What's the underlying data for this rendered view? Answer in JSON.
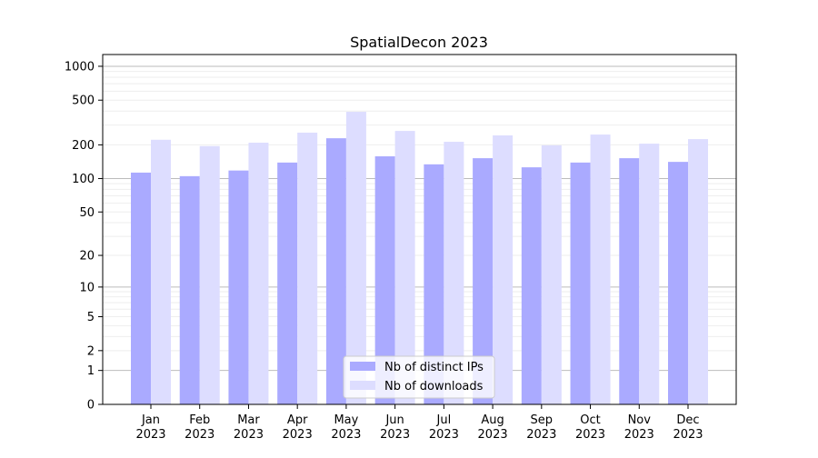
{
  "chart_data": {
    "type": "bar",
    "title": "SpatialDecon 2023",
    "xlabel": "",
    "ylabel": "",
    "yscale": "symlog (log10(1+y))",
    "ylim": [
      0,
      1300
    ],
    "yticks": [
      0,
      1,
      2,
      5,
      10,
      20,
      50,
      100,
      200,
      500,
      1000
    ],
    "grid": true,
    "legend_position": "bottom-center",
    "categories": [
      "Jan\n2023",
      "Feb\n2023",
      "Mar\n2023",
      "Apr\n2023",
      "May\n2023",
      "Jun\n2023",
      "Jul\n2023",
      "Aug\n2023",
      "Sep\n2023",
      "Oct\n2023",
      "Nov\n2023",
      "Dec\n2023"
    ],
    "category_lines": [
      [
        "Jan",
        "2023"
      ],
      [
        "Feb",
        "2023"
      ],
      [
        "Mar",
        "2023"
      ],
      [
        "Apr",
        "2023"
      ],
      [
        "May",
        "2023"
      ],
      [
        "Jun",
        "2023"
      ],
      [
        "Jul",
        "2023"
      ],
      [
        "Aug",
        "2023"
      ],
      [
        "Sep",
        "2023"
      ],
      [
        "Oct",
        "2023"
      ],
      [
        "Nov",
        "2023"
      ],
      [
        "Dec",
        "2023"
      ]
    ],
    "series": [
      {
        "name": "Nb of distinct IPs",
        "color": "#aaaaff",
        "values": [
          113,
          105,
          118,
          139,
          229,
          158,
          134,
          152,
          126,
          139,
          152,
          141
        ]
      },
      {
        "name": "Nb of downloads",
        "color": "#ddddff",
        "values": [
          222,
          195,
          209,
          257,
          394,
          266,
          213,
          243,
          198,
          247,
          205,
          225
        ]
      }
    ]
  }
}
